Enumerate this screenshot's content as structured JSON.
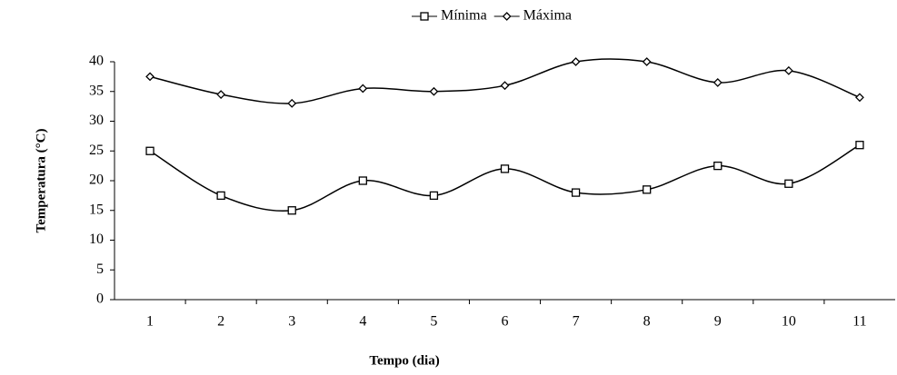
{
  "chart_data": {
    "type": "line",
    "x_label": "Tempo (dia)",
    "y_label": "Temperatura (°C)",
    "categories": [
      "1",
      "2",
      "3",
      "4",
      "5",
      "6",
      "7",
      "8",
      "9",
      "10",
      "11"
    ],
    "series": [
      {
        "name": "Mínima",
        "color": "#000000",
        "marker": "square",
        "values": [
          25,
          17.5,
          15,
          20,
          17.5,
          22,
          18,
          18.5,
          22.5,
          19.5,
          26
        ]
      },
      {
        "name": "Máxima",
        "color": "#000000",
        "marker": "diamond",
        "values": [
          37.5,
          34.5,
          33,
          35.5,
          35,
          36,
          40,
          40,
          36.5,
          38.5,
          34
        ]
      }
    ],
    "ylim": [
      0,
      40
    ],
    "yticks": [
      0,
      5,
      10,
      15,
      20,
      25,
      30,
      35,
      40
    ],
    "grid": false,
    "smooth": true,
    "legend": "top"
  }
}
